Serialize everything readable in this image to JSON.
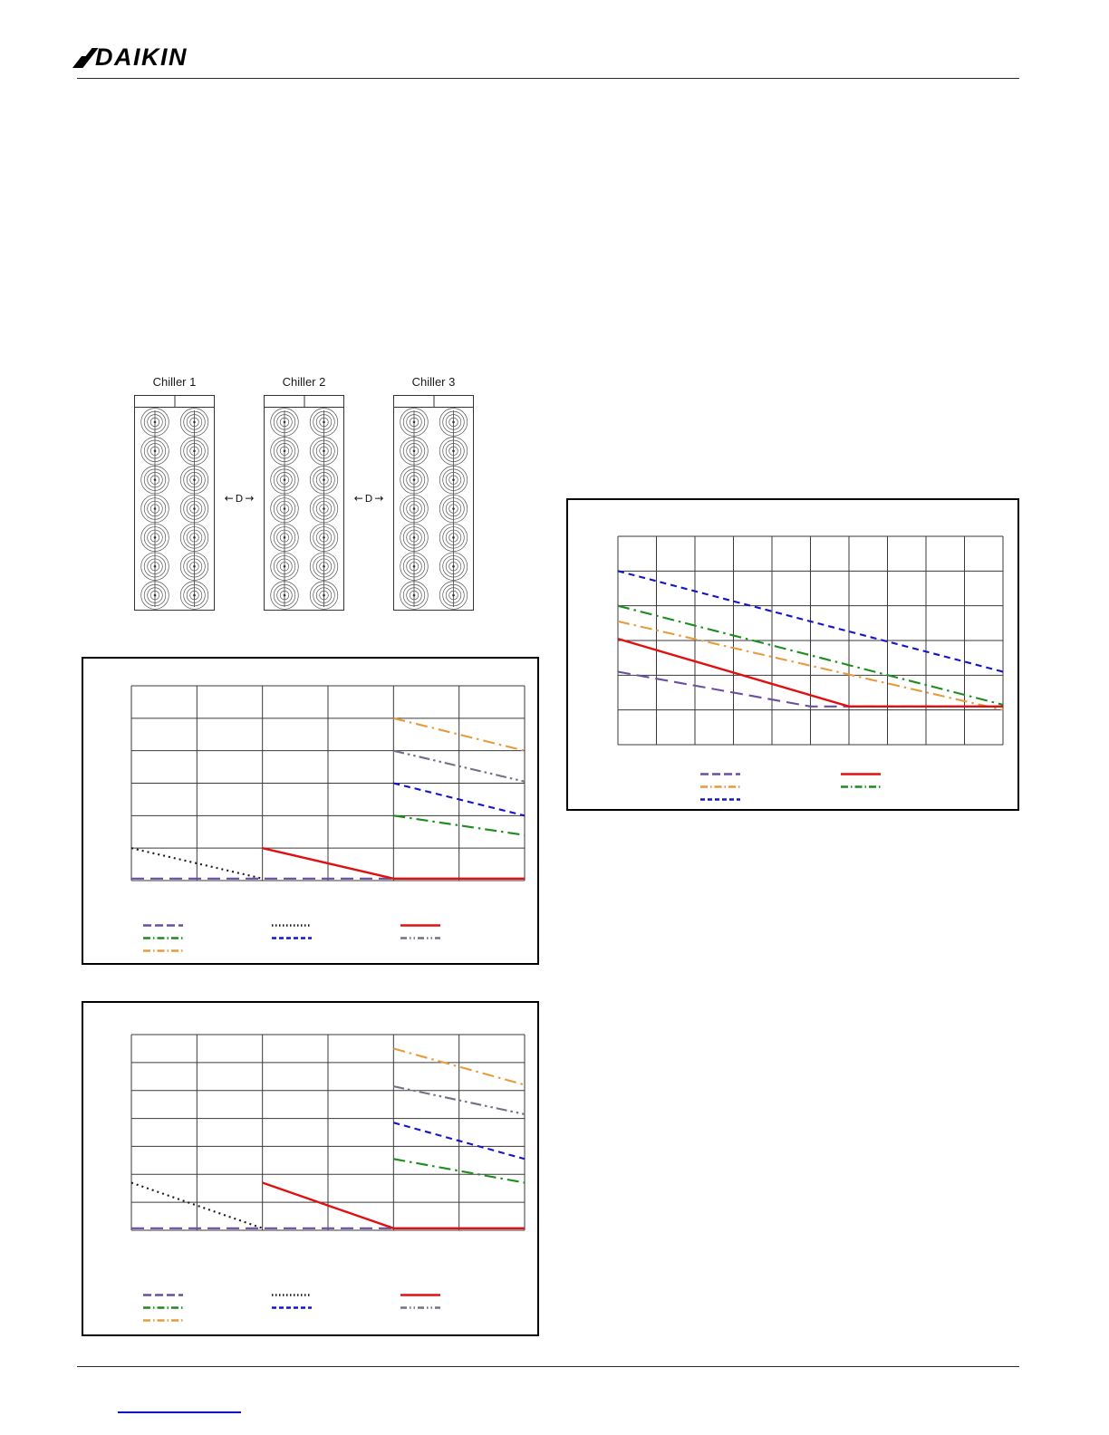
{
  "header": {
    "brand": "DAIKIN"
  },
  "chiller_diagram": {
    "chillers": [
      {
        "label": "Chiller 1"
      },
      {
        "label": "Chiller 2"
      },
      {
        "label": "Chiller 3"
      }
    ],
    "spacing_label": "D",
    "fan_rows": 7,
    "fan_columns": 2
  },
  "chart_data": [
    {
      "id": "chart-right",
      "type": "line",
      "grid": {
        "cols": 10,
        "rows": 6,
        "gridlines": true
      },
      "series": [
        {
          "name": "blue-dashed",
          "color": "#1414CC",
          "pattern": "dash",
          "points": [
            [
              0,
              5.0
            ],
            [
              10,
              2.1
            ]
          ]
        },
        {
          "name": "green-dash-dot",
          "color": "#1E8C1E",
          "pattern": "dashdot",
          "points": [
            [
              0,
              4.0
            ],
            [
              10,
              1.15
            ]
          ]
        },
        {
          "name": "orange-dash-dot",
          "color": "#E79B3C",
          "pattern": "dashdot",
          "points": [
            [
              0,
              3.55
            ],
            [
              10,
              1.0
            ]
          ]
        },
        {
          "name": "purple-long-dash",
          "color": "#6A4FA0",
          "pattern": "longdash",
          "points": [
            [
              0,
              2.1
            ],
            [
              5,
              1.1
            ],
            [
              10,
              1.1
            ]
          ]
        },
        {
          "name": "red-solid",
          "color": "#E01010",
          "pattern": "solid",
          "points": [
            [
              0,
              3.05
            ],
            [
              6,
              1.1
            ],
            [
              10,
              1.1
            ]
          ]
        }
      ],
      "legend_columns": [
        [
          "purple-long-dash",
          "orange-dash-dot",
          "blue-dashed"
        ],
        [
          "red-solid",
          "green-dash-dot"
        ]
      ]
    },
    {
      "id": "chart-middle-left",
      "type": "line",
      "grid": {
        "cols": 6,
        "rows": 6,
        "gridlines": true
      },
      "series": [
        {
          "name": "orange-dash-dot",
          "color": "#E79B3C",
          "pattern": "dashdot",
          "points": [
            [
              4,
              5.0
            ],
            [
              6,
              4.0
            ]
          ]
        },
        {
          "name": "gray-dash-dot-dot",
          "color": "#70708A",
          "pattern": "dashdotdot",
          "points": [
            [
              4,
              4.0
            ],
            [
              6,
              3.05
            ]
          ]
        },
        {
          "name": "blue-dashed",
          "color": "#1414CC",
          "pattern": "dash",
          "points": [
            [
              4,
              3.0
            ],
            [
              6,
              2.0
            ]
          ]
        },
        {
          "name": "green-dash-dot",
          "color": "#1E8C1E",
          "pattern": "dashdot",
          "points": [
            [
              4,
              2.0
            ],
            [
              6,
              1.4
            ]
          ]
        },
        {
          "name": "black-dotted",
          "color": "#1A1A1A",
          "pattern": "dot",
          "points": [
            [
              0,
              1.0
            ],
            [
              2,
              0.06
            ]
          ]
        },
        {
          "name": "purple-long-dash",
          "color": "#6A4FA0",
          "pattern": "longdash",
          "points": [
            [
              0,
              0.06
            ],
            [
              4,
              0.06
            ]
          ]
        },
        {
          "name": "red-solid",
          "color": "#E01010",
          "pattern": "solid",
          "points": [
            [
              2,
              1.0
            ],
            [
              4,
              0.06
            ],
            [
              6,
              0.06
            ]
          ]
        }
      ],
      "legend_columns": [
        [
          "purple-long-dash",
          "green-dash-dot",
          "orange-dash-dot"
        ],
        [
          "black-dotted",
          "blue-dashed"
        ],
        [
          "red-solid",
          "gray-dash-dot-dot"
        ]
      ]
    },
    {
      "id": "chart-bottom-left",
      "type": "line",
      "grid": {
        "cols": 6,
        "rows": 7,
        "gridlines": true
      },
      "series": [
        {
          "name": "orange-dash-dot",
          "color": "#E79B3C",
          "pattern": "dashdot",
          "points": [
            [
              4,
              6.5
            ],
            [
              6,
              5.2
            ]
          ]
        },
        {
          "name": "gray-dash-dot-dot",
          "color": "#70708A",
          "pattern": "dashdotdot",
          "points": [
            [
              4,
              5.15
            ],
            [
              6,
              4.15
            ]
          ]
        },
        {
          "name": "blue-dashed",
          "color": "#1414CC",
          "pattern": "dash",
          "points": [
            [
              4,
              3.85
            ],
            [
              6,
              2.55
            ]
          ]
        },
        {
          "name": "green-dash-dot",
          "color": "#1E8C1E",
          "pattern": "dashdot",
          "points": [
            [
              4,
              2.55
            ],
            [
              6,
              1.7
            ]
          ]
        },
        {
          "name": "black-dotted",
          "color": "#1A1A1A",
          "pattern": "dot",
          "points": [
            [
              0,
              1.7
            ],
            [
              2,
              0.07
            ]
          ]
        },
        {
          "name": "purple-long-dash",
          "color": "#6A4FA0",
          "pattern": "longdash",
          "points": [
            [
              0,
              0.07
            ],
            [
              4,
              0.07
            ]
          ]
        },
        {
          "name": "red-solid",
          "color": "#E01010",
          "pattern": "solid",
          "points": [
            [
              2,
              1.7
            ],
            [
              4,
              0.07
            ],
            [
              6,
              0.07
            ]
          ]
        }
      ],
      "legend_columns": [
        [
          "purple-long-dash",
          "green-dash-dot",
          "orange-dash-dot"
        ],
        [
          "black-dotted",
          "blue-dashed"
        ],
        [
          "red-solid",
          "gray-dash-dot-dot"
        ]
      ]
    }
  ],
  "footer": {
    "link_text": ""
  }
}
